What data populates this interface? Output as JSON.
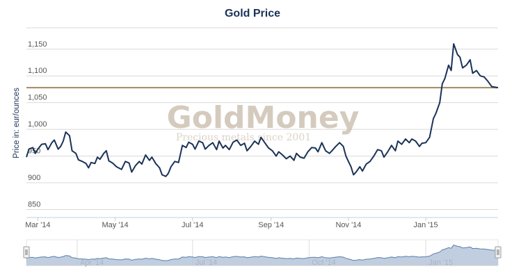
{
  "chart_data": {
    "type": "line",
    "title": "Gold Price",
    "ylabel": "Price in: eur/ounces",
    "ylim": [
      835,
      1190
    ],
    "yticks": [
      850,
      900,
      950,
      1000,
      1050,
      1100,
      1150
    ],
    "ytick_labels": [
      "850",
      "900",
      "950",
      "1,000",
      "1,050",
      "1,100",
      "1,150"
    ],
    "xlim": [
      "2014-02-20",
      "2015-02-27"
    ],
    "xticks": [
      {
        "date": "2014-03-01",
        "label": "Mar '14"
      },
      {
        "date": "2014-05-01",
        "label": "May '14"
      },
      {
        "date": "2014-07-01",
        "label": "Jul '14"
      },
      {
        "date": "2014-09-01",
        "label": "Sep '14"
      },
      {
        "date": "2014-11-01",
        "label": "Nov '14"
      },
      {
        "date": "2015-01-01",
        "label": "Jan '15"
      }
    ],
    "reference_line": {
      "value": 1078,
      "color": "#a08a60"
    },
    "series": [
      {
        "color": "#1a3258",
        "points": [
          [
            "2014-02-20",
            948
          ],
          [
            "2014-02-22",
            963
          ],
          [
            "2014-02-25",
            966
          ],
          [
            "2014-02-27",
            955
          ],
          [
            "2014-03-01",
            963
          ],
          [
            "2014-03-04",
            972
          ],
          [
            "2014-03-07",
            973
          ],
          [
            "2014-03-09",
            962
          ],
          [
            "2014-03-12",
            975
          ],
          [
            "2014-03-14",
            980
          ],
          [
            "2014-03-17",
            963
          ],
          [
            "2014-03-19",
            968
          ],
          [
            "2014-03-21",
            978
          ],
          [
            "2014-03-23",
            995
          ],
          [
            "2014-03-26",
            988
          ],
          [
            "2014-03-28",
            960
          ],
          [
            "2014-03-31",
            955
          ],
          [
            "2014-04-02",
            943
          ],
          [
            "2014-04-05",
            940
          ],
          [
            "2014-04-08",
            936
          ],
          [
            "2014-04-10",
            928
          ],
          [
            "2014-04-12",
            938
          ],
          [
            "2014-04-15",
            936
          ],
          [
            "2014-04-17",
            948
          ],
          [
            "2014-04-19",
            944
          ],
          [
            "2014-04-22",
            955
          ],
          [
            "2014-04-24",
            960
          ],
          [
            "2014-04-26",
            941
          ],
          [
            "2014-04-29",
            937
          ],
          [
            "2014-05-02",
            930
          ],
          [
            "2014-05-06",
            925
          ],
          [
            "2014-05-09",
            940
          ],
          [
            "2014-05-12",
            937
          ],
          [
            "2014-05-14",
            920
          ],
          [
            "2014-05-17",
            932
          ],
          [
            "2014-05-20",
            940
          ],
          [
            "2014-05-22",
            935
          ],
          [
            "2014-05-25",
            952
          ],
          [
            "2014-05-28",
            942
          ],
          [
            "2014-05-30",
            948
          ],
          [
            "2014-06-02",
            936
          ],
          [
            "2014-06-05",
            928
          ],
          [
            "2014-06-07",
            915
          ],
          [
            "2014-06-10",
            912
          ],
          [
            "2014-06-12",
            918
          ],
          [
            "2014-06-14",
            930
          ],
          [
            "2014-06-17",
            940
          ],
          [
            "2014-06-20",
            938
          ],
          [
            "2014-06-23",
            970
          ],
          [
            "2014-06-26",
            966
          ],
          [
            "2014-06-28",
            976
          ],
          [
            "2014-07-01",
            972
          ],
          [
            "2014-07-03",
            963
          ],
          [
            "2014-07-06",
            978
          ],
          [
            "2014-07-09",
            975
          ],
          [
            "2014-07-11",
            963
          ],
          [
            "2014-07-14",
            970
          ],
          [
            "2014-07-17",
            975
          ],
          [
            "2014-07-20",
            962
          ],
          [
            "2014-07-22",
            978
          ],
          [
            "2014-07-25",
            965
          ],
          [
            "2014-07-27",
            970
          ],
          [
            "2014-07-30",
            962
          ],
          [
            "2014-08-02",
            976
          ],
          [
            "2014-08-05",
            980
          ],
          [
            "2014-08-08",
            970
          ],
          [
            "2014-08-11",
            974
          ],
          [
            "2014-08-13",
            960
          ],
          [
            "2014-08-16",
            968
          ],
          [
            "2014-08-19",
            978
          ],
          [
            "2014-08-22",
            972
          ],
          [
            "2014-08-24",
            985
          ],
          [
            "2014-08-27",
            975
          ],
          [
            "2014-08-30",
            965
          ],
          [
            "2014-09-02",
            960
          ],
          [
            "2014-09-05",
            950
          ],
          [
            "2014-09-07",
            958
          ],
          [
            "2014-09-10",
            952
          ],
          [
            "2014-09-13",
            945
          ],
          [
            "2014-09-16",
            950
          ],
          [
            "2014-09-19",
            942
          ],
          [
            "2014-09-21",
            955
          ],
          [
            "2014-09-24",
            948
          ],
          [
            "2014-09-27",
            946
          ],
          [
            "2014-09-30",
            958
          ],
          [
            "2014-10-03",
            966
          ],
          [
            "2014-10-06",
            965
          ],
          [
            "2014-10-08",
            958
          ],
          [
            "2014-10-11",
            975
          ],
          [
            "2014-10-14",
            960
          ],
          [
            "2014-10-17",
            955
          ],
          [
            "2014-10-19",
            960
          ],
          [
            "2014-10-22",
            968
          ],
          [
            "2014-10-25",
            975
          ],
          [
            "2014-10-28",
            968
          ],
          [
            "2014-10-30",
            950
          ],
          [
            "2014-11-01",
            940
          ],
          [
            "2014-11-03",
            930
          ],
          [
            "2014-11-05",
            915
          ],
          [
            "2014-11-07",
            920
          ],
          [
            "2014-11-10",
            930
          ],
          [
            "2014-11-12",
            922
          ],
          [
            "2014-11-15",
            935
          ],
          [
            "2014-11-18",
            940
          ],
          [
            "2014-11-21",
            950
          ],
          [
            "2014-11-24",
            962
          ],
          [
            "2014-11-27",
            960
          ],
          [
            "2014-11-29",
            948
          ],
          [
            "2014-12-02",
            958
          ],
          [
            "2014-12-05",
            970
          ],
          [
            "2014-12-08",
            960
          ],
          [
            "2014-12-10",
            978
          ],
          [
            "2014-12-13",
            972
          ],
          [
            "2014-12-16",
            982
          ],
          [
            "2014-12-19",
            975
          ],
          [
            "2014-12-21",
            982
          ],
          [
            "2014-12-24",
            978
          ],
          [
            "2014-12-27",
            968
          ],
          [
            "2014-12-29",
            974
          ],
          [
            "2015-01-01",
            975
          ],
          [
            "2015-01-04",
            985
          ],
          [
            "2015-01-07",
            1020
          ],
          [
            "2015-01-09",
            1030
          ],
          [
            "2015-01-12",
            1050
          ],
          [
            "2015-01-14",
            1085
          ],
          [
            "2015-01-16",
            1095
          ],
          [
            "2015-01-19",
            1120
          ],
          [
            "2015-01-21",
            1110
          ],
          [
            "2015-01-23",
            1160
          ],
          [
            "2015-01-26",
            1140
          ],
          [
            "2015-01-28",
            1135
          ],
          [
            "2015-01-30",
            1115
          ],
          [
            "2015-02-02",
            1120
          ],
          [
            "2015-02-05",
            1130
          ],
          [
            "2015-02-07",
            1105
          ],
          [
            "2015-02-10",
            1110
          ],
          [
            "2015-02-13",
            1100
          ],
          [
            "2015-02-16",
            1098
          ],
          [
            "2015-02-19",
            1090
          ],
          [
            "2015-02-22",
            1080
          ],
          [
            "2015-02-27",
            1078
          ]
        ]
      }
    ],
    "navigator": {
      "ticks": [
        {
          "date": "2014-04-01",
          "label": "Apr '14"
        },
        {
          "date": "2014-07-01",
          "label": "Jul '14"
        },
        {
          "date": "2014-10-01",
          "label": "Oct '14"
        },
        {
          "date": "2015-01-01",
          "label": "Jan '15"
        }
      ],
      "fill_color": "#b5c6da",
      "line_color": "#5a7ea8"
    },
    "watermark": {
      "brand": "GoldMoney",
      "tagline": "Precious metals since 2001"
    }
  }
}
